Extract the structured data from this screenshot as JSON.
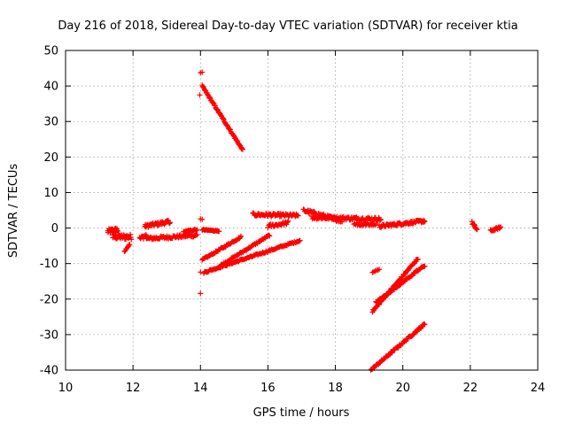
{
  "chart_data": {
    "type": "scatter",
    "title": "Day 216 of 2018, Sidereal Day-to-day VTEC variation (SDTVAR) for receiver ktia",
    "xlabel": "GPS time / hours",
    "ylabel": "SDTVAR / TECUs",
    "xlim": [
      10,
      24
    ],
    "ylim": [
      -40,
      50
    ],
    "xticks": [
      10,
      12,
      14,
      16,
      18,
      20,
      22,
      24
    ],
    "yticks": [
      -40,
      -30,
      -20,
      -10,
      0,
      10,
      20,
      30,
      40,
      50
    ],
    "grid": true,
    "marker": "+",
    "color": "#ff0000",
    "segments": [
      {
        "x0": 11.25,
        "x1": 11.55,
        "y0": -1.0,
        "y1": -0.5,
        "spread": 1.5,
        "n": 25
      },
      {
        "x0": 11.4,
        "x1": 11.95,
        "y0": -2.5,
        "y1": -2.5,
        "spread": 1.5,
        "n": 35
      },
      {
        "x0": 11.75,
        "x1": 11.9,
        "y0": -6.5,
        "y1": -4.5,
        "spread": 0.4,
        "n": 8
      },
      {
        "x0": 12.2,
        "x1": 12.4,
        "y0": -3.0,
        "y1": -2.0,
        "spread": 1.2,
        "n": 12
      },
      {
        "x0": 12.35,
        "x1": 13.1,
        "y0": 0.5,
        "y1": 1.8,
        "spread": 1.0,
        "n": 45
      },
      {
        "x0": 12.4,
        "x1": 13.9,
        "y0": -3.0,
        "y1": -2.0,
        "spread": 0.9,
        "n": 75
      },
      {
        "x0": 13.5,
        "x1": 13.9,
        "y0": -1.0,
        "y1": -0.5,
        "spread": 0.4,
        "n": 20
      },
      {
        "x0": 14.0,
        "x1": 14.05,
        "y0": 43.8,
        "y1": 43.8,
        "spread": 0.2,
        "n": 2
      },
      {
        "x0": 13.98,
        "x1": 14.0,
        "y0": 37.5,
        "y1": 37.5,
        "spread": 0.2,
        "n": 1
      },
      {
        "x0": 14.05,
        "x1": 15.25,
        "y0": 40.0,
        "y1": 22.0,
        "spread": 0.5,
        "n": 70
      },
      {
        "x0": 14.0,
        "x1": 14.05,
        "y0": 2.5,
        "y1": 2.5,
        "spread": 0.2,
        "n": 2
      },
      {
        "x0": 14.05,
        "x1": 14.55,
        "y0": -0.5,
        "y1": -0.8,
        "spread": 0.3,
        "n": 22
      },
      {
        "x0": 14.0,
        "x1": 14.02,
        "y0": -12.5,
        "y1": -12.5,
        "spread": 0.2,
        "n": 1
      },
      {
        "x0": 14.0,
        "x1": 14.02,
        "y0": -18.5,
        "y1": -18.5,
        "spread": 0.2,
        "n": 1
      },
      {
        "x0": 14.05,
        "x1": 15.2,
        "y0": -9.0,
        "y1": -2.5,
        "spread": 0.5,
        "n": 55
      },
      {
        "x0": 14.1,
        "x1": 16.95,
        "y0": -12.5,
        "y1": -3.5,
        "spread": 0.5,
        "n": 120
      },
      {
        "x0": 14.6,
        "x1": 16.05,
        "y0": -10.5,
        "y1": -2.0,
        "spread": 0.5,
        "n": 60
      },
      {
        "x0": 15.55,
        "x1": 16.9,
        "y0": 3.8,
        "y1": 3.5,
        "spread": 0.9,
        "n": 70
      },
      {
        "x0": 16.0,
        "x1": 16.6,
        "y0": 0.5,
        "y1": 1.5,
        "spread": 1.0,
        "n": 25
      },
      {
        "x0": 17.05,
        "x1": 18.2,
        "y0": 5.0,
        "y1": 2.0,
        "spread": 1.0,
        "n": 60
      },
      {
        "x0": 17.3,
        "x1": 19.35,
        "y0": 3.0,
        "y1": 2.5,
        "spread": 1.0,
        "n": 100
      },
      {
        "x0": 18.55,
        "x1": 19.2,
        "y0": 1.0,
        "y1": 1.0,
        "spread": 0.8,
        "n": 25
      },
      {
        "x0": 19.3,
        "x1": 20.65,
        "y0": 0.5,
        "y1": 2.0,
        "spread": 0.8,
        "n": 80
      },
      {
        "x0": 22.05,
        "x1": 22.2,
        "y0": 1.5,
        "y1": -0.5,
        "spread": 0.8,
        "n": 12
      },
      {
        "x0": 22.6,
        "x1": 22.9,
        "y0": -0.8,
        "y1": 0.2,
        "spread": 0.6,
        "n": 18
      },
      {
        "x0": 19.1,
        "x1": 19.3,
        "y0": -12.5,
        "y1": -11.5,
        "spread": 0.3,
        "n": 6
      },
      {
        "x0": 19.1,
        "x1": 20.45,
        "y0": -23.5,
        "y1": -8.5,
        "spread": 0.6,
        "n": 70
      },
      {
        "x0": 19.2,
        "x1": 20.65,
        "y0": -21.0,
        "y1": -10.5,
        "spread": 0.6,
        "n": 70
      },
      {
        "x0": 19.05,
        "x1": 20.65,
        "y0": -40.0,
        "y1": -27.0,
        "spread": 0.6,
        "n": 80
      }
    ]
  }
}
